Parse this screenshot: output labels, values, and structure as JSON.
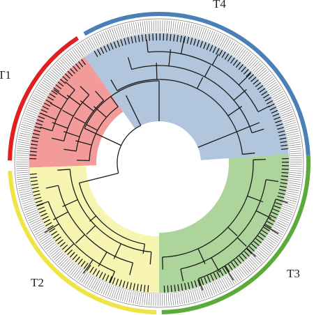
{
  "figure": {
    "type": "circular-phylogenetic-tree",
    "clusters": [
      {
        "id": "T1",
        "label": "T1",
        "color": "#e02020",
        "shade": "#f08a88",
        "leaf_color": "#c0392b"
      },
      {
        "id": "T2",
        "label": "T2",
        "color": "#f0e443",
        "shade": "#f7f3a6",
        "leaf_color": "#8a8a30"
      },
      {
        "id": "T3",
        "label": "T3",
        "color": "#5aab3a",
        "shade": "#9fcc8a",
        "leaf_color": "#2e7d1e"
      },
      {
        "id": "T4",
        "label": "T4",
        "color": "#4a7fb8",
        "shade": "#a3bcd6",
        "leaf_color": "#1f4e80"
      }
    ],
    "branch_color": "#1a1a1a",
    "background": "#ffffff"
  }
}
